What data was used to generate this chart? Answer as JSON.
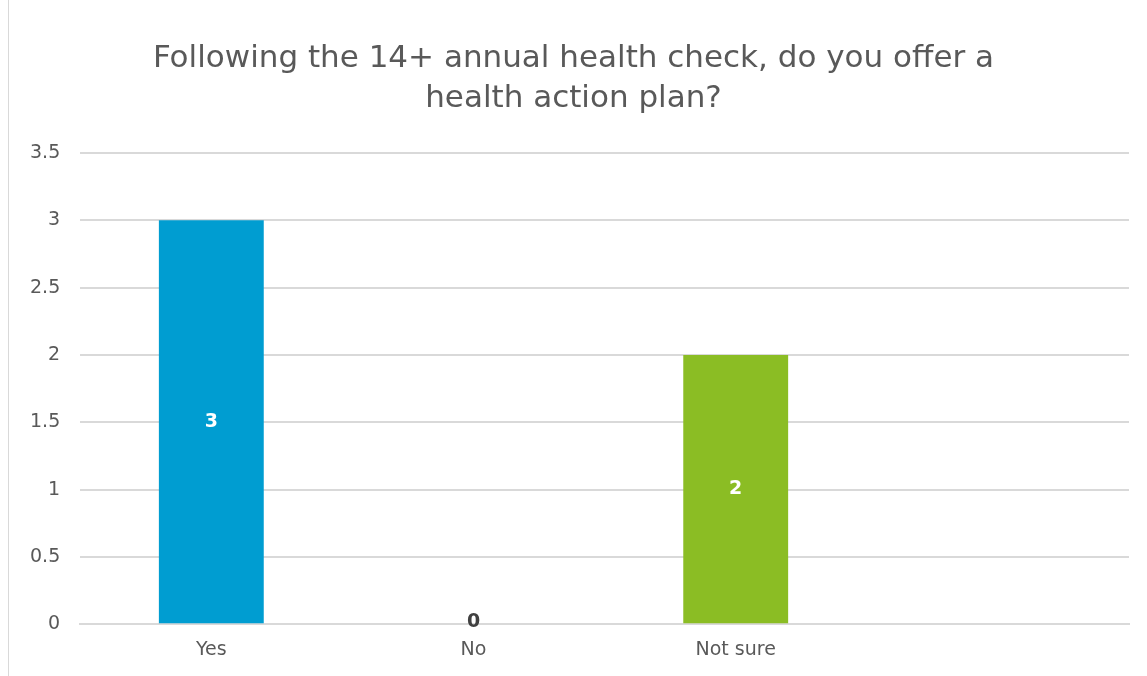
{
  "chart_data": {
    "type": "bar",
    "title": "Following the 14+ annual health check, do you offer a health action plan?",
    "categories": [
      "Yes",
      "No",
      "Not sure",
      null
    ],
    "values": [
      3,
      0,
      2,
      null
    ],
    "colors": [
      "#009dd1",
      "#7f7f7f",
      "#8bbd24",
      "#7f7f7f"
    ],
    "ylim": [
      0,
      3.5
    ],
    "yticks": [
      0,
      0.5,
      1,
      1.5,
      2,
      2.5,
      3,
      3.5
    ],
    "grid": "y",
    "legend": false,
    "data_labels": true
  }
}
